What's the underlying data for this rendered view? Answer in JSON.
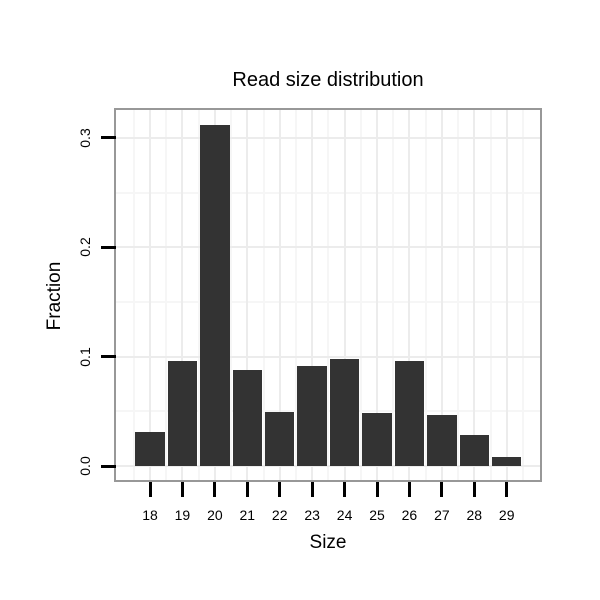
{
  "chart_data": {
    "type": "bar",
    "title": "Read size distribution",
    "xlabel": "Size",
    "ylabel": "Fraction",
    "categories": [
      "18",
      "19",
      "20",
      "21",
      "22",
      "23",
      "24",
      "25",
      "26",
      "27",
      "28",
      "29"
    ],
    "values": [
      0.031,
      0.096,
      0.312,
      0.088,
      0.049,
      0.091,
      0.098,
      0.048,
      0.096,
      0.047,
      0.028,
      0.008
    ],
    "y_tick_labels": [
      "0.0",
      "0.1",
      "0.2",
      "0.3"
    ],
    "y_tick_values": [
      0.0,
      0.1,
      0.2,
      0.3
    ],
    "y_minor_values": [
      0.05,
      0.15,
      0.25
    ],
    "ylim": [
      -0.013,
      0.325
    ],
    "grid": "major+minor",
    "legend": "none",
    "colors": {
      "bar": "#333333",
      "panel_border": "#989898",
      "grid_major": "#ececec",
      "grid_minor": "#f6f6f6",
      "tick": "#000000",
      "text": "#000000",
      "background": "#ffffff"
    }
  }
}
